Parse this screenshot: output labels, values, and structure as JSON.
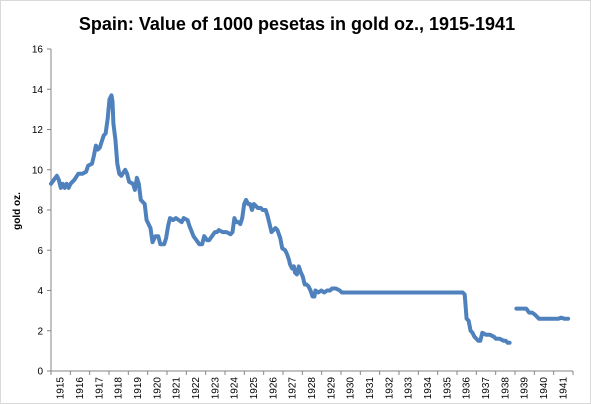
{
  "chart_data": {
    "type": "line",
    "title": "Spain: Value of 1000 pesetas in gold oz., 1915-1941",
    "xlabel": "",
    "ylabel": "gold oz.",
    "xlim": [
      1915,
      1941.75
    ],
    "ylim": [
      0,
      16
    ],
    "y_ticks": [
      0,
      2,
      4,
      6,
      8,
      10,
      12,
      14,
      16
    ],
    "x_tick_labels": [
      "1915",
      "1916",
      "1917",
      "1918",
      "1919",
      "1920",
      "1921",
      "1922",
      "1923",
      "1924",
      "1925",
      "1926",
      "1927",
      "1928",
      "1929",
      "1930",
      "1931",
      "1932",
      "1933",
      "1934",
      "1935",
      "1936",
      "1937",
      "1938",
      "1939",
      "1940",
      "1941"
    ],
    "grid": false,
    "legend": "none",
    "line_color": "#4f81bd",
    "series": [
      {
        "segments": [
          [
            [
              1915.0,
              9.3
            ],
            [
              1915.15,
              9.5
            ],
            [
              1915.3,
              9.7
            ],
            [
              1915.4,
              9.5
            ],
            [
              1915.5,
              9.1
            ],
            [
              1915.6,
              9.3
            ],
            [
              1915.7,
              9.1
            ],
            [
              1915.8,
              9.3
            ],
            [
              1915.9,
              9.1
            ],
            [
              1916.0,
              9.3
            ],
            [
              1916.2,
              9.5
            ],
            [
              1916.4,
              9.8
            ],
            [
              1916.6,
              9.8
            ],
            [
              1916.8,
              9.9
            ],
            [
              1916.9,
              10.2
            ],
            [
              1917.1,
              10.3
            ],
            [
              1917.2,
              10.7
            ],
            [
              1917.3,
              11.2
            ],
            [
              1917.4,
              11.0
            ],
            [
              1917.5,
              11.1
            ],
            [
              1917.6,
              11.4
            ],
            [
              1917.7,
              11.7
            ],
            [
              1917.8,
              11.8
            ],
            [
              1917.9,
              12.5
            ],
            [
              1918.0,
              13.5
            ],
            [
              1918.1,
              13.7
            ],
            [
              1918.15,
              13.4
            ],
            [
              1918.2,
              12.3
            ],
            [
              1918.3,
              11.5
            ],
            [
              1918.4,
              10.3
            ],
            [
              1918.5,
              9.8
            ],
            [
              1918.6,
              9.7
            ],
            [
              1918.8,
              10.0
            ],
            [
              1918.9,
              9.8
            ],
            [
              1919.0,
              9.4
            ],
            [
              1919.2,
              9.3
            ],
            [
              1919.3,
              9.0
            ],
            [
              1919.4,
              9.6
            ],
            [
              1919.5,
              9.3
            ],
            [
              1919.6,
              8.5
            ],
            [
              1919.8,
              8.3
            ],
            [
              1919.9,
              7.5
            ],
            [
              1920.1,
              7.1
            ],
            [
              1920.2,
              6.4
            ],
            [
              1920.35,
              6.7
            ],
            [
              1920.5,
              6.7
            ],
            [
              1920.6,
              6.3
            ],
            [
              1920.8,
              6.3
            ],
            [
              1920.9,
              6.6
            ],
            [
              1921.0,
              7.2
            ],
            [
              1921.1,
              7.6
            ],
            [
              1921.25,
              7.5
            ],
            [
              1921.4,
              7.6
            ],
            [
              1921.55,
              7.5
            ],
            [
              1921.7,
              7.4
            ],
            [
              1921.8,
              7.6
            ],
            [
              1922.0,
              7.5
            ],
            [
              1922.1,
              7.2
            ],
            [
              1922.3,
              6.7
            ],
            [
              1922.45,
              6.5
            ],
            [
              1922.6,
              6.3
            ],
            [
              1922.75,
              6.3
            ],
            [
              1922.85,
              6.7
            ],
            [
              1923.0,
              6.5
            ],
            [
              1923.1,
              6.5
            ],
            [
              1923.25,
              6.7
            ],
            [
              1923.4,
              6.9
            ],
            [
              1923.5,
              6.9
            ],
            [
              1923.6,
              7.0
            ],
            [
              1923.8,
              6.9
            ],
            [
              1924.0,
              6.9
            ],
            [
              1924.2,
              6.8
            ],
            [
              1924.3,
              6.9
            ],
            [
              1924.4,
              7.6
            ],
            [
              1924.5,
              7.4
            ],
            [
              1924.6,
              7.4
            ],
            [
              1924.7,
              7.3
            ],
            [
              1924.8,
              7.6
            ],
            [
              1924.9,
              8.3
            ],
            [
              1925.0,
              8.5
            ],
            [
              1925.1,
              8.3
            ],
            [
              1925.2,
              8.3
            ],
            [
              1925.3,
              8.0
            ],
            [
              1925.4,
              8.3
            ],
            [
              1925.5,
              8.2
            ],
            [
              1925.6,
              8.1
            ],
            [
              1925.75,
              8.1
            ],
            [
              1925.85,
              8.0
            ],
            [
              1926.0,
              8.0
            ],
            [
              1926.1,
              7.7
            ],
            [
              1926.2,
              7.3
            ],
            [
              1926.3,
              6.9
            ],
            [
              1926.4,
              7.0
            ],
            [
              1926.5,
              7.1
            ],
            [
              1926.6,
              7.0
            ],
            [
              1926.75,
              6.6
            ],
            [
              1926.85,
              6.1
            ],
            [
              1927.0,
              6.0
            ],
            [
              1927.1,
              5.8
            ],
            [
              1927.2,
              5.5
            ],
            [
              1927.25,
              5.3
            ],
            [
              1927.35,
              5.1
            ],
            [
              1927.45,
              5.2
            ],
            [
              1927.5,
              4.9
            ],
            [
              1927.6,
              4.8
            ],
            [
              1927.7,
              5.2
            ],
            [
              1927.8,
              4.9
            ],
            [
              1927.9,
              4.7
            ],
            [
              1928.0,
              4.3
            ],
            [
              1928.1,
              4.3
            ],
            [
              1928.2,
              4.2
            ],
            [
              1928.3,
              4.0
            ],
            [
              1928.4,
              3.7
            ],
            [
              1928.5,
              3.7
            ],
            [
              1928.55,
              4.0
            ],
            [
              1928.7,
              3.9
            ],
            [
              1928.85,
              4.0
            ],
            [
              1929.0,
              3.9
            ],
            [
              1929.15,
              4.0
            ],
            [
              1929.3,
              4.0
            ],
            [
              1929.4,
              4.1
            ],
            [
              1929.6,
              4.1
            ],
            [
              1929.8,
              4.0
            ],
            [
              1929.9,
              3.9
            ],
            [
              1930.05,
              3.9
            ],
            [
              1930.2,
              3.9
            ],
            [
              1930.4,
              3.9
            ],
            [
              1930.6,
              3.9
            ],
            [
              1930.8,
              3.9
            ],
            [
              1931.0,
              3.9
            ],
            [
              1931.2,
              3.9
            ],
            [
              1931.4,
              3.9
            ],
            [
              1931.6,
              3.9
            ],
            [
              1931.8,
              3.9
            ],
            [
              1932.0,
              3.9
            ],
            [
              1932.2,
              3.9
            ],
            [
              1932.4,
              3.9
            ],
            [
              1932.6,
              3.9
            ],
            [
              1932.8,
              3.9
            ],
            [
              1933.0,
              3.9
            ],
            [
              1933.2,
              3.9
            ],
            [
              1933.4,
              3.9
            ],
            [
              1933.6,
              3.9
            ],
            [
              1933.8,
              3.9
            ],
            [
              1934.0,
              3.9
            ],
            [
              1934.2,
              3.9
            ],
            [
              1934.4,
              3.9
            ],
            [
              1934.6,
              3.9
            ],
            [
              1934.8,
              3.9
            ],
            [
              1935.0,
              3.9
            ],
            [
              1935.2,
              3.9
            ],
            [
              1935.4,
              3.9
            ],
            [
              1935.6,
              3.9
            ],
            [
              1935.8,
              3.9
            ],
            [
              1936.0,
              3.9
            ],
            [
              1936.1,
              3.9
            ],
            [
              1936.2,
              3.8
            ],
            [
              1936.3,
              2.6
            ],
            [
              1936.4,
              2.5
            ],
            [
              1936.5,
              2.0
            ],
            [
              1936.6,
              1.9
            ],
            [
              1936.7,
              1.7
            ],
            [
              1936.8,
              1.6
            ],
            [
              1936.9,
              1.5
            ],
            [
              1937.0,
              1.5
            ],
            [
              1937.1,
              1.9
            ],
            [
              1937.3,
              1.8
            ],
            [
              1937.5,
              1.8
            ],
            [
              1937.7,
              1.7
            ],
            [
              1937.8,
              1.6
            ],
            [
              1938.0,
              1.6
            ],
            [
              1938.2,
              1.5
            ],
            [
              1938.3,
              1.5
            ],
            [
              1938.4,
              1.4
            ],
            [
              1938.5,
              1.4
            ]
          ],
          [
            [
              1938.85,
              3.1
            ],
            [
              1939.0,
              3.1
            ],
            [
              1939.2,
              3.1
            ],
            [
              1939.35,
              3.1
            ],
            [
              1939.5,
              2.9
            ],
            [
              1939.65,
              2.9
            ],
            [
              1939.8,
              2.8
            ],
            [
              1940.0,
              2.6
            ],
            [
              1940.2,
              2.6
            ],
            [
              1940.4,
              2.6
            ],
            [
              1940.6,
              2.6
            ],
            [
              1940.8,
              2.6
            ],
            [
              1941.0,
              2.6
            ],
            [
              1941.15,
              2.65
            ],
            [
              1941.3,
              2.6
            ],
            [
              1941.5,
              2.6
            ]
          ]
        ]
      }
    ]
  }
}
